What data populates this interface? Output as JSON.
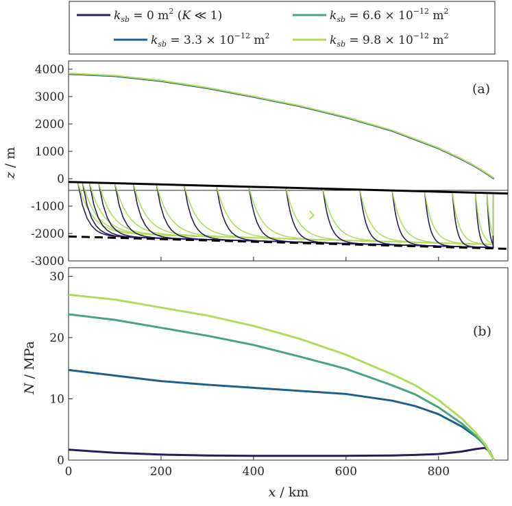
{
  "chart_data": [
    {
      "type": "line",
      "panel": "(a)",
      "xlim": [
        0,
        950
      ],
      "ylim": [
        -3000,
        4300
      ],
      "ylabel": "z / m",
      "yticks": [
        -3000,
        -2000,
        -1000,
        0,
        1000,
        2000,
        3000,
        4000
      ],
      "yticklabels": [
        "-3000",
        "-2000",
        "-1000",
        "0",
        "1000",
        "2000",
        "3000",
        "4000"
      ],
      "xticks": [
        0,
        200,
        400,
        600,
        800
      ],
      "surface_x": [
        0,
        100,
        200,
        300,
        400,
        500,
        600,
        700,
        800,
        850,
        880,
        900,
        910,
        915,
        920
      ],
      "surface_z": [
        3820,
        3740,
        3560,
        3300,
        2980,
        2640,
        2230,
        1740,
        1100,
        700,
        430,
        220,
        110,
        50,
        0
      ],
      "bed_top": {
        "x": [
          0,
          950
        ],
        "z": [
          -120,
          -540
        ]
      },
      "bed_bottom": {
        "x": [
          0,
          950
        ],
        "z": [
          -2110,
          -2560
        ]
      },
      "streamline_start_x": [
        20,
        30,
        45,
        65,
        100,
        140,
        190,
        250,
        320,
        390,
        470,
        550,
        630,
        700,
        770,
        830,
        880,
        905
      ],
      "arrow": {
        "x": 530,
        "z": -1330
      }
    },
    {
      "type": "line",
      "panel": "(b)",
      "xlabel": "x / km",
      "ylabel": "N / MPa",
      "xlim": [
        0,
        950
      ],
      "ylim": [
        0,
        30
      ],
      "xticks": [
        0,
        200,
        400,
        600,
        800
      ],
      "xticklabels": [
        "0",
        "200",
        "400",
        "600",
        "800"
      ],
      "yticks": [
        0,
        10,
        20,
        30
      ],
      "yticklabels": [
        "0",
        "10",
        "20",
        "30"
      ],
      "x": [
        0,
        100,
        200,
        300,
        400,
        500,
        600,
        700,
        750,
        800,
        850,
        880,
        900,
        910,
        920
      ],
      "series": [
        {
          "name": "k_sb = 0 m^2 (K << 1)",
          "color": "#2b1b5e",
          "values": [
            1.7,
            1.2,
            0.9,
            0.75,
            0.7,
            0.7,
            0.7,
            0.75,
            0.85,
            1.0,
            1.4,
            1.8,
            2.0,
            1.5,
            0.0
          ]
        },
        {
          "name": "k_sb = 3.3 x 10^-12 m^2",
          "color": "#1f5f8b",
          "values": [
            14.7,
            13.8,
            12.9,
            12.3,
            11.8,
            11.3,
            10.8,
            9.7,
            8.8,
            7.5,
            5.5,
            3.9,
            2.5,
            1.4,
            0.0
          ]
        },
        {
          "name": "k_sb = 6.6 x 10^-12 m^2",
          "color": "#46a383",
          "values": [
            23.8,
            22.9,
            21.6,
            20.3,
            18.8,
            16.9,
            14.9,
            12.2,
            10.7,
            8.6,
            6.0,
            4.0,
            2.4,
            1.3,
            0.0
          ]
        },
        {
          "name": "k_sb = 9.8 x 10^-12 m^2",
          "color": "#b0dc5b",
          "values": [
            27.0,
            26.2,
            24.9,
            23.6,
            21.9,
            19.8,
            17.2,
            14.0,
            12.2,
            9.8,
            6.8,
            4.5,
            2.7,
            1.4,
            0.0
          ]
        }
      ]
    }
  ],
  "legend": {
    "entries": [
      {
        "color": "#2b1b5e",
        "k": "k",
        "sub": "sb",
        "eq": " = 0 m",
        "sup": "2",
        "tail": " (",
        "tail_i": "K",
        "tail2": " ≪ 1)"
      },
      {
        "color": "#46a383",
        "k": "k",
        "sub": "sb",
        "eq": " = 6.6 × 10",
        "sup": "−12",
        "tail": " m",
        "tail_sup": "2"
      },
      {
        "color": "#1f5f8b",
        "k": "k",
        "sub": "sb",
        "eq": " = 3.3 × 10",
        "sup": "−12",
        "tail": " m",
        "tail_sup": "2"
      },
      {
        "color": "#b0dc5b",
        "k": "k",
        "sub": "sb",
        "eq": " = 9.8 × 10",
        "sup": "−12",
        "tail": " m",
        "tail_sup": "2"
      }
    ]
  },
  "panels": {
    "a": "(a)",
    "b": "(b)"
  },
  "axis_labels": {
    "a_y_var": "z",
    "a_y_unit": " / m",
    "b_y_var": "N",
    "b_y_unit": " / MPa",
    "x_var": "x",
    "x_unit": " / km"
  }
}
